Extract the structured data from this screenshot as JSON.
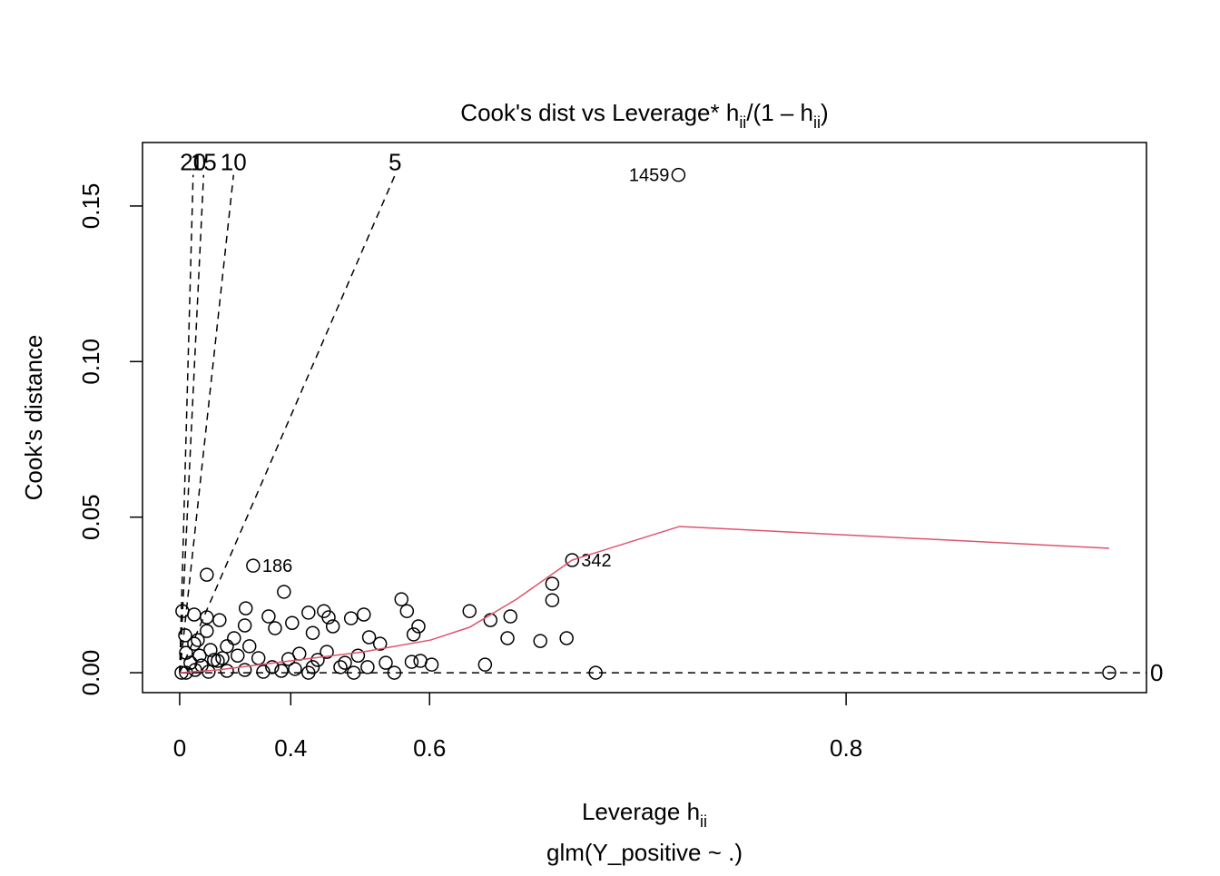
{
  "chart_data": {
    "type": "scatter",
    "title_parts": [
      {
        "text": "Cook's dist vs Leverage* h"
      },
      {
        "text": "ii",
        "sub": true
      },
      {
        "text": "/(1 – h"
      },
      {
        "text": "ii",
        "sub": true
      },
      {
        "text": ")"
      }
    ],
    "xlabel_parts": [
      {
        "text": "Leverage  h"
      },
      {
        "text": "ii",
        "sub": true
      }
    ],
    "subtitle": "glm(Y_positive ~ .)",
    "ylabel": "Cook's distance",
    "x_scale": "h/(1-h)",
    "xlim": [
      -0.287,
      0.853
    ],
    "ylim": [
      -0.0064,
      0.1704
    ],
    "xticks": [
      0,
      0.4,
      0.6,
      0.8
    ],
    "yticks": [
      {
        "value": 0,
        "label": "0.00"
      },
      {
        "value": 0.05,
        "label": "0.05"
      },
      {
        "value": 0.1,
        "label": "0.10"
      },
      {
        "value": 0.15,
        "label": "0.15"
      }
    ],
    "color": "#000000",
    "x": [
      0.016,
      0.14,
      0.08,
      0.14,
      0.193,
      0.284,
      0.385,
      0.348,
      0.364,
      0.403,
      0.436,
      0.464,
      0.472,
      0.444,
      0.479,
      0.507,
      0.525,
      0.532,
      0.546,
      0.571,
      0.577,
      0.589,
      0.584,
      0.582,
      0.591,
      0.602,
      0.563,
      0.635,
      0.651,
      0.665,
      0.663,
      0.684,
      0.699,
      0.691,
      0.691,
      0.647,
      0.714,
      0.848,
      0.281,
      0.246,
      0.221,
      0.08,
      0.032,
      0.037,
      0.061,
      0.107,
      0.156,
      0.186,
      0.258,
      0.321,
      0.357,
      0.409,
      0.453,
      0.491,
      0.511,
      0.53,
      0.553,
      0.418,
      0.469,
      0.498,
      0.085,
      0.148,
      0.221,
      0.281,
      0.334,
      0.379,
      0.011,
      0.037,
      0.116,
      0.204,
      0.295,
      0.395,
      0.444,
      0.517,
      0.14,
      0.098,
      0.171,
      0.436
    ],
    "y": [
      0.0198,
      0.0315,
      0.0187,
      0.0178,
      0.0169,
      0.0207,
      0.026,
      0.0181,
      0.0143,
      0.016,
      0.0193,
      0.0198,
      0.0178,
      0.0128,
      0.0149,
      0.0175,
      0.0187,
      0.0114,
      0.0093,
      0.0236,
      0.0198,
      0.0149,
      0.0123,
      0.0035,
      0.0038,
      0.0026,
      0,
      0.0198,
      0.0169,
      0.0181,
      0.0111,
      0.0102,
      0.0111,
      0.0286,
      0.0233,
      0.0026,
      0,
      0,
      0.0152,
      0.0111,
      0.0085,
      0.0093,
      0.012,
      0.0064,
      0.0032,
      0.0055,
      0.0073,
      0.0038,
      0.0055,
      0.0047,
      0.0018,
      0.0012,
      0.0041,
      0.0018,
      0,
      0.0018,
      0.0032,
      0.0061,
      0.0067,
      0.0032,
      0.0009,
      0.0003,
      0.0006,
      0.0009,
      0.0003,
      0.0006,
      0,
      0,
      0.0023,
      0.0047,
      0.0085,
      0.0044,
      0.0018,
      0.0055,
      0.0134,
      0.0105,
      0.0041,
      0
    ],
    "labeled": {
      "x": [
        0.7496,
        0.702,
        0.306
      ],
      "y": [
        0.16,
        0.0362,
        0.0344
      ],
      "labels": [
        "1459",
        "342",
        "186"
      ]
    },
    "smooth": {
      "color": "#DF536B",
      "x": [
        0,
        0.186,
        0.399,
        0.524,
        0.601,
        0.635,
        0.669,
        0.702,
        0.75,
        0.848
      ],
      "y": [
        0,
        0.0009,
        0.0038,
        0.0067,
        0.0105,
        0.0146,
        0.0236,
        0.0362,
        0.047,
        0.04
      ]
    },
    "contours": {
      "levels": [
        20,
        15,
        10,
        5,
        0
      ],
      "coef": 0.00495
    }
  }
}
